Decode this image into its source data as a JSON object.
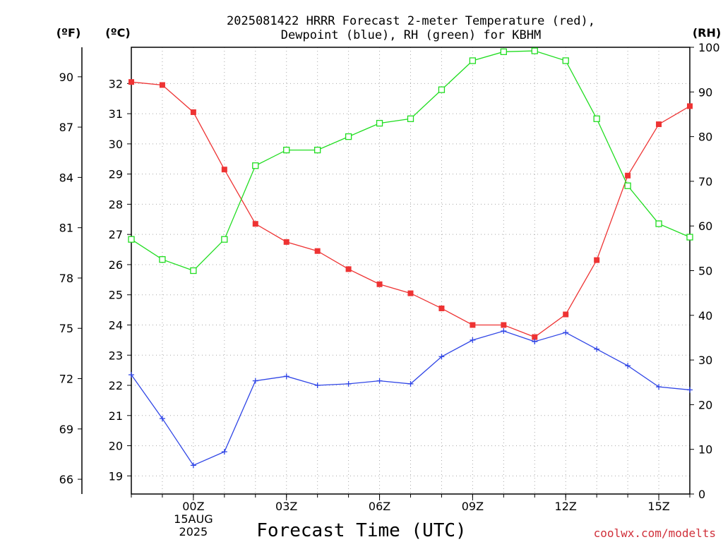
{
  "chart_data": {
    "type": "line",
    "title_line1": "2025081422 HRRR Forecast 2-meter Temperature (red),",
    "title_line2": "Dewpoint (blue), RH (green) for KBHM",
    "xlabel": "Forecast Time (UTC)",
    "credit": "coolwx.com/modelts",
    "units": {
      "f": "(ºF)",
      "c": "(ºC)",
      "rh": "(RH)"
    },
    "x_hours": [
      -2,
      -1,
      0,
      1,
      2,
      3,
      4,
      5,
      6,
      7,
      8,
      9,
      10,
      11,
      12,
      13,
      14,
      15,
      16
    ],
    "xlim": [
      -2,
      16
    ],
    "x_ticks": [
      {
        "hour": 0,
        "label": "00Z",
        "sub": [
          "15AUG",
          "2025"
        ]
      },
      {
        "hour": 3,
        "label": "03Z"
      },
      {
        "hour": 6,
        "label": "06Z"
      },
      {
        "hour": 9,
        "label": "09Z"
      },
      {
        "hour": 12,
        "label": "12Z"
      },
      {
        "hour": 15,
        "label": "15Z"
      }
    ],
    "y_c_range": [
      18.4,
      33.2
    ],
    "y_c_ticks": [
      19,
      20,
      21,
      22,
      23,
      24,
      25,
      26,
      27,
      28,
      29,
      30,
      31,
      32
    ],
    "y_f_ticks": [
      66,
      69,
      72,
      75,
      78,
      81,
      84,
      87,
      90
    ],
    "y_rh_range": [
      0,
      100
    ],
    "y_rh_ticks": [
      0,
      10,
      20,
      30,
      40,
      50,
      60,
      70,
      80,
      90,
      100
    ],
    "series": [
      {
        "key": "temperature",
        "color": "#ee3333",
        "axis": "c",
        "marker": "filled-square",
        "values": [
          32.05,
          31.95,
          31.05,
          29.15,
          27.35,
          26.75,
          26.45,
          25.85,
          25.35,
          25.05,
          24.55,
          24.0,
          24.0,
          23.6,
          24.35,
          26.15,
          28.95,
          30.65,
          31.25
        ]
      },
      {
        "key": "dewpoint",
        "color": "#2f45e6",
        "axis": "c",
        "marker": "plus",
        "values": [
          22.35,
          20.9,
          19.35,
          19.8,
          22.15,
          22.3,
          22.0,
          22.05,
          22.15,
          22.05,
          22.95,
          23.5,
          23.8,
          23.45,
          23.75,
          23.2,
          22.65,
          21.95,
          21.85
        ]
      },
      {
        "key": "rh",
        "color": "#20dd20",
        "axis": "rh",
        "marker": "open-square",
        "values": [
          57,
          52.5,
          50,
          57,
          73.5,
          77,
          77,
          80,
          83,
          84,
          90.5,
          97,
          99,
          99.2,
          97,
          84,
          69,
          60.5,
          57.5
        ]
      }
    ]
  }
}
